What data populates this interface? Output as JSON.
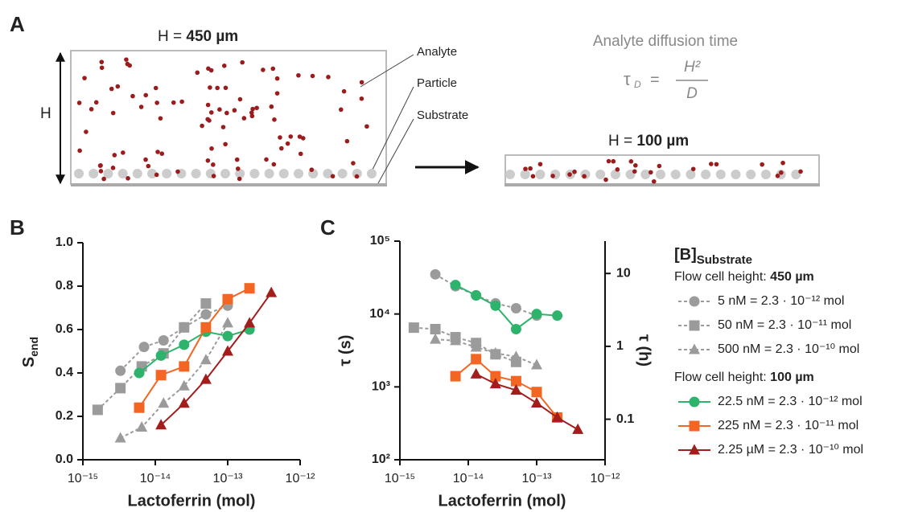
{
  "panel_labels": [
    "A",
    "B",
    "C"
  ],
  "panel_a": {
    "tall_label": "H = ",
    "tall_value": "450 µm",
    "short_label": "H = ",
    "short_value": "100 µm",
    "height_symbol": "H",
    "callouts": [
      "Analyte",
      "Particle",
      "Substrate"
    ],
    "diffusion_title": "Analyte diffusion time",
    "formula": {
      "lhs": "τ",
      "lhs_sub": "D",
      "eq": "=",
      "numerator": "H²",
      "denominator": "D"
    }
  },
  "chart_data": [
    {
      "type": "scatter",
      "x_label": "Lactoferrin (mol)",
      "y_label": "S",
      "y_label_sub": "end",
      "xscale": "log",
      "xlim": [
        1e-15,
        1e-12
      ],
      "xticks": [
        {
          "value": 1e-15,
          "label": "10⁻¹⁵"
        },
        {
          "value": 1e-14,
          "label": "10⁻¹⁴"
        },
        {
          "value": 1e-13,
          "label": "10⁻¹³"
        },
        {
          "value": 1e-12,
          "label": "10⁻¹²"
        }
      ],
      "ylim": [
        0,
        1
      ],
      "yticks": [
        {
          "value": 0,
          "label": "0.0"
        },
        {
          "value": 0.2,
          "label": "0.2"
        },
        {
          "value": 0.4,
          "label": "0.4"
        },
        {
          "value": 0.6,
          "label": "0.6"
        },
        {
          "value": 0.8,
          "label": "0.8"
        },
        {
          "value": 1,
          "label": "1.0"
        }
      ],
      "series": [
        {
          "color": "#9b9b9b",
          "marker": "circle",
          "dashed": true,
          "x": [
            3.3e-15,
            7e-15,
            1.3e-14,
            2.5e-14,
            5e-14,
            1e-13
          ],
          "values": [
            0.41,
            0.52,
            0.55,
            0.61,
            0.67,
            0.71
          ]
        },
        {
          "color": "#9b9b9b",
          "marker": "square",
          "dashed": true,
          "x": [
            1.6e-15,
            3.3e-15,
            6.5e-15,
            1.3e-14,
            2.5e-14,
            5e-14
          ],
          "values": [
            0.23,
            0.33,
            0.43,
            0.49,
            0.61,
            0.72
          ]
        },
        {
          "color": "#9b9b9b",
          "marker": "triangle",
          "dashed": true,
          "x": [
            3.3e-15,
            6.5e-15,
            1.3e-14,
            2.5e-14,
            5e-14,
            1e-13
          ],
          "values": [
            0.1,
            0.15,
            0.26,
            0.34,
            0.46,
            0.63
          ]
        },
        {
          "color": "#2db36b",
          "marker": "circle",
          "dashed": false,
          "x": [
            6e-15,
            1.2e-14,
            2.5e-14,
            5e-14,
            1e-13,
            2e-13
          ],
          "values": [
            0.4,
            0.48,
            0.53,
            0.59,
            0.57,
            0.6
          ]
        },
        {
          "color": "#f26522",
          "marker": "square",
          "dashed": false,
          "x": [
            6e-15,
            1.2e-14,
            2.5e-14,
            5e-14,
            1e-13,
            2e-13
          ],
          "values": [
            0.24,
            0.39,
            0.43,
            0.61,
            0.74,
            0.79
          ]
        },
        {
          "color": "#a31d1d",
          "marker": "triangle",
          "dashed": false,
          "x": [
            1.2e-14,
            2.5e-14,
            5e-14,
            1e-13,
            2e-13,
            4e-13
          ],
          "values": [
            0.16,
            0.26,
            0.37,
            0.5,
            0.63,
            0.77
          ]
        }
      ]
    },
    {
      "type": "scatter",
      "x_label": "Lactoferrin (mol)",
      "y_label": "τ (s)",
      "y2_label": "τ (h)",
      "xscale": "log",
      "xlim": [
        1e-15,
        1e-12
      ],
      "xticks": [
        {
          "value": 1e-15,
          "label": "10⁻¹⁵"
        },
        {
          "value": 1e-14,
          "label": "10⁻¹⁴"
        },
        {
          "value": 1e-13,
          "label": "10⁻¹³"
        },
        {
          "value": 1e-12,
          "label": "10⁻¹²"
        }
      ],
      "yscale": "log",
      "ylim": [
        100,
        100000
      ],
      "yticks": [
        {
          "value": 100,
          "label": "10²"
        },
        {
          "value": 1000,
          "label": "10³"
        },
        {
          "value": 10000,
          "label": "10⁴"
        },
        {
          "value": 100000,
          "label": "10⁵"
        }
      ],
      "y2lim": [
        0.02778,
        27.78
      ],
      "y2ticks": [
        0.1,
        1,
        10
      ],
      "legend": {
        "title": "[B]",
        "title_sub": "Substrate",
        "groups": [
          {
            "label": "Flow cell height: ",
            "bold": "450 µm",
            "series": [
              0,
              1,
              2
            ]
          },
          {
            "label": "Flow cell height: ",
            "bold": "100 µm",
            "series": [
              3,
              4,
              5
            ]
          }
        ]
      },
      "series": [
        {
          "name": "5 nM = 2.3 · 10⁻¹² mol",
          "color": "#9b9b9b",
          "marker": "circle",
          "dashed": true,
          "x": [
            3.3e-15,
            6.5e-15,
            1.3e-14,
            2.5e-14,
            5e-14,
            1e-13
          ],
          "values": [
            35000,
            24000,
            18000,
            14000,
            12000,
            9500
          ]
        },
        {
          "name": "50 nM = 2.3 · 10⁻¹¹ mol",
          "color": "#9b9b9b",
          "marker": "square",
          "dashed": true,
          "x": [
            1.6e-15,
            3.3e-15,
            6.5e-15,
            1.3e-14,
            2.5e-14,
            5e-14
          ],
          "values": [
            6500,
            6200,
            4800,
            4000,
            2800,
            2200
          ]
        },
        {
          "name": "500 nM = 2.3 · 10⁻¹⁰ mol",
          "color": "#9b9b9b",
          "marker": "triangle",
          "dashed": true,
          "x": [
            3.3e-15,
            6.5e-15,
            1.3e-14,
            2.5e-14,
            5e-14,
            1e-13
          ],
          "values": [
            4500,
            4300,
            3500,
            2900,
            2600,
            2000
          ]
        },
        {
          "name": "22.5 nM = 2.3 · 10⁻¹² mol",
          "color": "#2db36b",
          "marker": "circle",
          "dashed": false,
          "x": [
            6.5e-15,
            1.3e-14,
            2.5e-14,
            5e-14,
            1e-13,
            2e-13
          ],
          "values": [
            25000,
            18000,
            13000,
            6200,
            10000,
            9500
          ]
        },
        {
          "name": "225 nM = 2.3 · 10⁻¹¹ mol",
          "color": "#f26522",
          "marker": "square",
          "dashed": false,
          "x": [
            6.5e-15,
            1.3e-14,
            2.5e-14,
            5e-14,
            1e-13,
            2e-13
          ],
          "values": [
            1400,
            2400,
            1400,
            1200,
            850,
            380
          ]
        },
        {
          "name": "2.25 µM = 2.3 · 10⁻¹⁰ mol",
          "color": "#a31d1d",
          "marker": "triangle",
          "dashed": false,
          "x": [
            1.3e-14,
            2.5e-14,
            5e-14,
            1e-13,
            2e-13,
            4e-13
          ],
          "values": [
            1500,
            1100,
            900,
            600,
            380,
            260
          ]
        }
      ]
    }
  ]
}
